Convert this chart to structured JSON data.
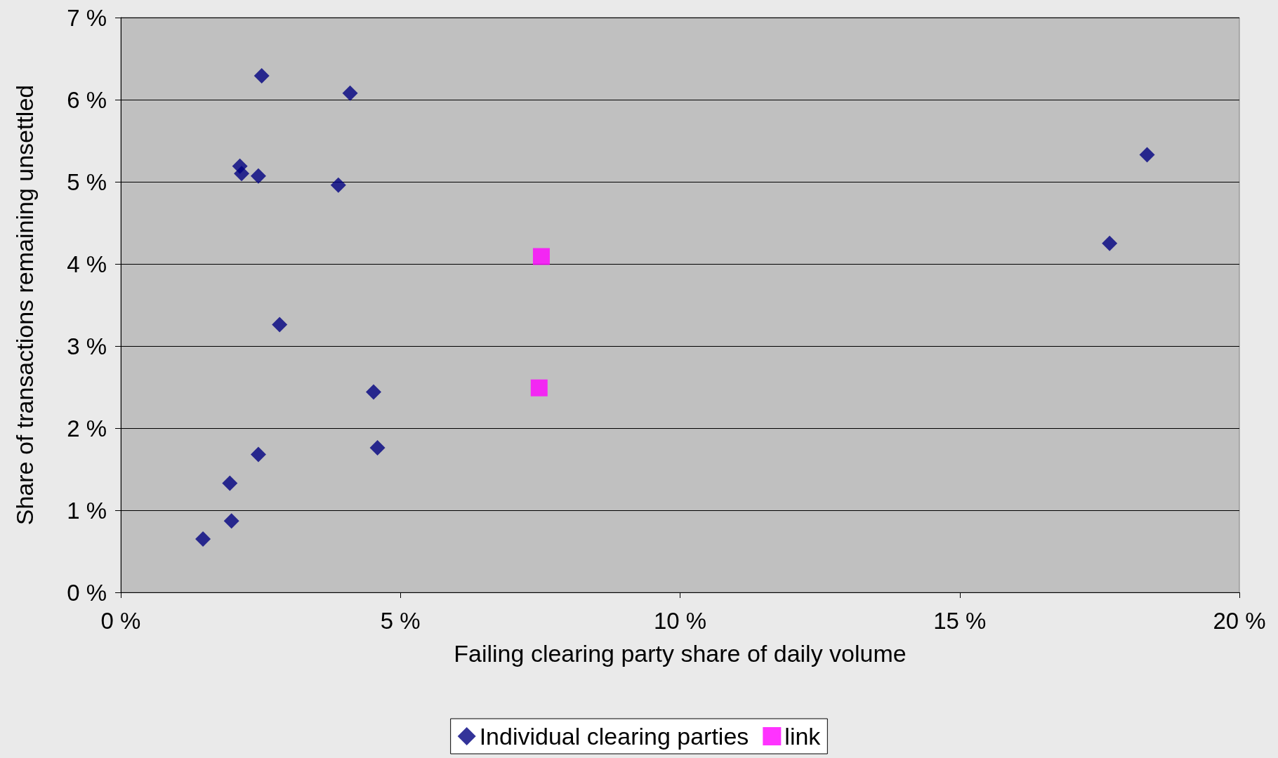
{
  "chart_data": {
    "type": "scatter",
    "xlabel": "Failing clearing party share of daily volume",
    "ylabel": "Share of transactions remaining unsettled",
    "xlim": [
      0,
      20
    ],
    "xticks": [
      {
        "value": 0,
        "label": "0 %"
      },
      {
        "value": 5,
        "label": "5 %"
      },
      {
        "value": 10,
        "label": "10 %"
      },
      {
        "value": 15,
        "label": "15 %"
      },
      {
        "value": 20,
        "label": "20 %"
      }
    ],
    "ylim": [
      0,
      7
    ],
    "yticks": [
      {
        "value": 0,
        "label": "0 %"
      },
      {
        "value": 1,
        "label": "1 %"
      },
      {
        "value": 2,
        "label": "2 %"
      },
      {
        "value": 3,
        "label": "3 %"
      },
      {
        "value": 4,
        "label": "4 %"
      },
      {
        "value": 5,
        "label": "5 %"
      },
      {
        "value": 6,
        "label": "6 %"
      },
      {
        "value": 7,
        "label": "7 %"
      }
    ],
    "grid": "y",
    "legend": "bottom",
    "series": [
      {
        "name": "Individual clearing parties",
        "color": "#000080",
        "marker": "diamond",
        "x": [
          1.47,
          1.98,
          1.95,
          2.46,
          4.59,
          4.52,
          2.84,
          3.89,
          2.46,
          2.13,
          2.16,
          2.52,
          4.1,
          17.68,
          18.35
        ],
        "values": [
          0.65,
          0.87,
          1.33,
          1.68,
          1.76,
          2.44,
          3.26,
          4.96,
          5.07,
          5.19,
          5.1,
          6.29,
          6.08,
          4.25,
          5.33
        ]
      },
      {
        "name": "link",
        "color": "#ff00ff",
        "marker": "square",
        "x": [
          7.52,
          7.48
        ],
        "values": [
          4.09,
          2.49
        ]
      }
    ]
  }
}
